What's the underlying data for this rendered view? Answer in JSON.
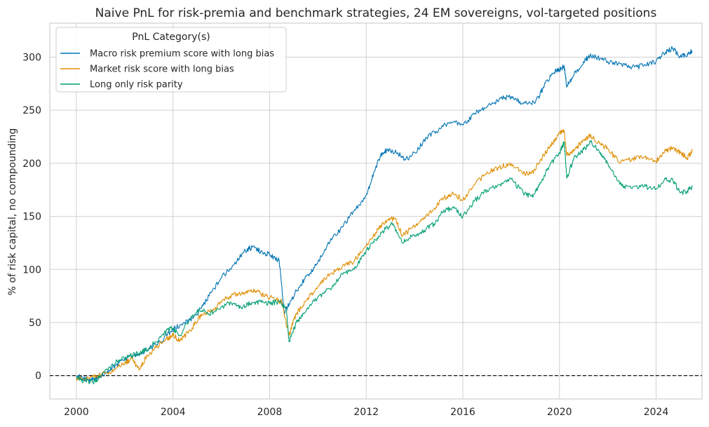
{
  "chart_data": {
    "type": "line",
    "title": "Naive PnL for risk-premia and benchmark strategies, 24 EM sovereigns, vol-targeted positions",
    "xlabel": "",
    "ylabel": "% of risk capital, no compounding",
    "xlim": [
      1998.9,
      2025.9
    ],
    "ylim": [
      -22,
      332
    ],
    "x_ticks": [
      2000,
      2004,
      2008,
      2012,
      2016,
      2020,
      2024
    ],
    "x_tick_labels": [
      "2000",
      "2004",
      "2008",
      "2012",
      "2016",
      "2020",
      "2024"
    ],
    "y_ticks": [
      0,
      50,
      100,
      150,
      200,
      250,
      300
    ],
    "y_tick_labels": [
      "0",
      "50",
      "100",
      "150",
      "200",
      "250",
      "300"
    ],
    "grid": true,
    "zero_line": {
      "value": 0,
      "style": "dashed",
      "color": "#000000"
    },
    "legend": {
      "title": "PnL Category(s)",
      "placement": "top-left"
    },
    "series": [
      {
        "name": "Macro risk premium score with long bias",
        "color": "#0173b2",
        "points": [
          [
            2000.0,
            0
          ],
          [
            2000.3,
            -3
          ],
          [
            2000.6,
            -4
          ],
          [
            2000.9,
            -2
          ],
          [
            2001.2,
            3
          ],
          [
            2001.6,
            9
          ],
          [
            2002.0,
            15
          ],
          [
            2002.5,
            20
          ],
          [
            2003.0,
            25
          ],
          [
            2003.5,
            32
          ],
          [
            2004.0,
            44
          ],
          [
            2004.5,
            49
          ],
          [
            2005.0,
            58
          ],
          [
            2005.5,
            75
          ],
          [
            2006.0,
            92
          ],
          [
            2006.5,
            104
          ],
          [
            2007.0,
            118
          ],
          [
            2007.3,
            121
          ],
          [
            2007.7,
            116
          ],
          [
            2008.0,
            114
          ],
          [
            2008.4,
            108
          ],
          [
            2008.6,
            60
          ],
          [
            2008.8,
            67
          ],
          [
            2009.2,
            83
          ],
          [
            2009.6,
            95
          ],
          [
            2010.0,
            107
          ],
          [
            2010.5,
            126
          ],
          [
            2011.0,
            140
          ],
          [
            2011.5,
            155
          ],
          [
            2012.0,
            170
          ],
          [
            2012.3,
            190
          ],
          [
            2012.6,
            208
          ],
          [
            2012.9,
            213
          ],
          [
            2013.3,
            210
          ],
          [
            2013.6,
            203
          ],
          [
            2014.0,
            210
          ],
          [
            2014.5,
            224
          ],
          [
            2015.0,
            232
          ],
          [
            2015.5,
            239
          ],
          [
            2016.0,
            236
          ],
          [
            2016.5,
            247
          ],
          [
            2017.0,
            253
          ],
          [
            2017.5,
            260
          ],
          [
            2018.0,
            263
          ],
          [
            2018.5,
            256
          ],
          [
            2019.0,
            257
          ],
          [
            2019.3,
            270
          ],
          [
            2019.7,
            285
          ],
          [
            2020.0,
            288
          ],
          [
            2020.2,
            291
          ],
          [
            2020.3,
            272
          ],
          [
            2020.6,
            283
          ],
          [
            2021.0,
            296
          ],
          [
            2021.3,
            302
          ],
          [
            2021.7,
            299
          ],
          [
            2022.0,
            296
          ],
          [
            2022.5,
            294
          ],
          [
            2023.0,
            290
          ],
          [
            2023.5,
            292
          ],
          [
            2024.0,
            296
          ],
          [
            2024.4,
            305
          ],
          [
            2024.7,
            308
          ],
          [
            2025.0,
            300
          ],
          [
            2025.3,
            303
          ],
          [
            2025.5,
            306
          ]
        ]
      },
      {
        "name": "Market risk score with long bias",
        "color": "#de8f05",
        "points": [
          [
            2000.0,
            -2
          ],
          [
            2000.4,
            -3
          ],
          [
            2000.8,
            -1
          ],
          [
            2001.2,
            2
          ],
          [
            2001.6,
            6
          ],
          [
            2002.0,
            12
          ],
          [
            2002.3,
            16
          ],
          [
            2002.6,
            5
          ],
          [
            2002.9,
            18
          ],
          [
            2003.3,
            26
          ],
          [
            2003.7,
            34
          ],
          [
            2004.0,
            38
          ],
          [
            2004.3,
            33
          ],
          [
            2004.8,
            45
          ],
          [
            2005.2,
            58
          ],
          [
            2005.7,
            62
          ],
          [
            2006.1,
            72
          ],
          [
            2006.5,
            76
          ],
          [
            2007.0,
            79
          ],
          [
            2007.4,
            80
          ],
          [
            2007.8,
            75
          ],
          [
            2008.2,
            72
          ],
          [
            2008.5,
            70
          ],
          [
            2008.8,
            38
          ],
          [
            2009.1,
            58
          ],
          [
            2009.5,
            70
          ],
          [
            2010.0,
            84
          ],
          [
            2010.5,
            96
          ],
          [
            2011.0,
            102
          ],
          [
            2011.5,
            108
          ],
          [
            2012.0,
            122
          ],
          [
            2012.4,
            135
          ],
          [
            2012.8,
            146
          ],
          [
            2013.2,
            148
          ],
          [
            2013.5,
            132
          ],
          [
            2013.9,
            139
          ],
          [
            2014.4,
            149
          ],
          [
            2014.8,
            157
          ],
          [
            2015.2,
            167
          ],
          [
            2015.6,
            172
          ],
          [
            2016.0,
            165
          ],
          [
            2016.5,
            180
          ],
          [
            2017.0,
            192
          ],
          [
            2017.5,
            196
          ],
          [
            2018.0,
            200
          ],
          [
            2018.5,
            190
          ],
          [
            2018.9,
            192
          ],
          [
            2019.2,
            203
          ],
          [
            2019.6,
            215
          ],
          [
            2020.0,
            228
          ],
          [
            2020.2,
            230
          ],
          [
            2020.3,
            207
          ],
          [
            2020.6,
            212
          ],
          [
            2021.0,
            222
          ],
          [
            2021.3,
            226
          ],
          [
            2021.7,
            218
          ],
          [
            2022.0,
            214
          ],
          [
            2022.5,
            200
          ],
          [
            2023.0,
            204
          ],
          [
            2023.5,
            206
          ],
          [
            2024.0,
            202
          ],
          [
            2024.4,
            212
          ],
          [
            2024.7,
            215
          ],
          [
            2025.0,
            210
          ],
          [
            2025.3,
            205
          ],
          [
            2025.5,
            212
          ]
        ]
      },
      {
        "name": "Long only risk parity",
        "color": "#029e73",
        "points": [
          [
            2000.0,
            -1
          ],
          [
            2000.3,
            -5
          ],
          [
            2000.7,
            -6
          ],
          [
            2001.0,
            -1
          ],
          [
            2001.4,
            8
          ],
          [
            2001.8,
            15
          ],
          [
            2002.2,
            18
          ],
          [
            2002.6,
            21
          ],
          [
            2003.0,
            26
          ],
          [
            2003.5,
            36
          ],
          [
            2003.9,
            45
          ],
          [
            2004.3,
            38
          ],
          [
            2004.7,
            53
          ],
          [
            2005.1,
            62
          ],
          [
            2005.5,
            58
          ],
          [
            2006.0,
            65
          ],
          [
            2006.4,
            69
          ],
          [
            2006.8,
            64
          ],
          [
            2007.2,
            68
          ],
          [
            2007.6,
            70
          ],
          [
            2008.0,
            68
          ],
          [
            2008.4,
            70
          ],
          [
            2008.7,
            63
          ],
          [
            2008.8,
            32
          ],
          [
            2009.1,
            50
          ],
          [
            2009.5,
            60
          ],
          [
            2010.0,
            74
          ],
          [
            2010.5,
            82
          ],
          [
            2011.0,
            96
          ],
          [
            2011.5,
            100
          ],
          [
            2012.0,
            118
          ],
          [
            2012.4,
            128
          ],
          [
            2012.8,
            138
          ],
          [
            2013.1,
            143
          ],
          [
            2013.5,
            125
          ],
          [
            2013.9,
            131
          ],
          [
            2014.4,
            137
          ],
          [
            2014.8,
            143
          ],
          [
            2015.2,
            155
          ],
          [
            2015.6,
            158
          ],
          [
            2016.0,
            150
          ],
          [
            2016.5,
            165
          ],
          [
            2017.0,
            175
          ],
          [
            2017.5,
            180
          ],
          [
            2018.0,
            185
          ],
          [
            2018.5,
            172
          ],
          [
            2018.9,
            168
          ],
          [
            2019.2,
            182
          ],
          [
            2019.6,
            198
          ],
          [
            2020.0,
            210
          ],
          [
            2020.2,
            220
          ],
          [
            2020.3,
            186
          ],
          [
            2020.6,
            205
          ],
          [
            2021.0,
            213
          ],
          [
            2021.3,
            220
          ],
          [
            2021.7,
            210
          ],
          [
            2022.0,
            200
          ],
          [
            2022.5,
            180
          ],
          [
            2023.0,
            176
          ],
          [
            2023.5,
            178
          ],
          [
            2024.0,
            176
          ],
          [
            2024.4,
            185
          ],
          [
            2024.7,
            184
          ],
          [
            2025.0,
            172
          ],
          [
            2025.3,
            174
          ],
          [
            2025.5,
            178
          ]
        ]
      }
    ]
  }
}
